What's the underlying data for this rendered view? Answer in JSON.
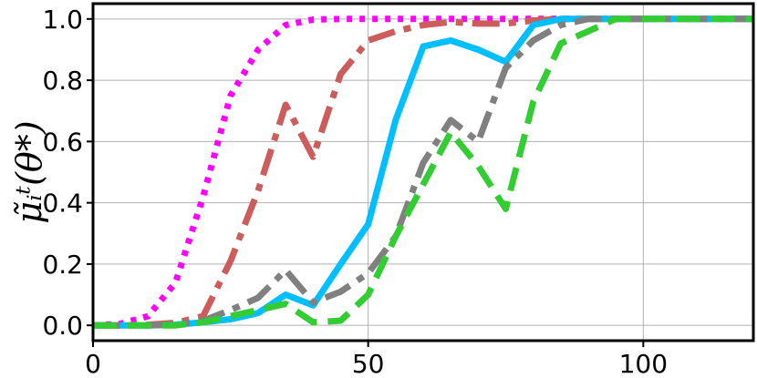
{
  "chart_data": {
    "type": "line",
    "title": "",
    "xlabel": "",
    "ylabel": "μ̃ᵢᵗ(θ*)",
    "xlim": [
      0,
      120
    ],
    "ylim": [
      -0.05,
      1.05
    ],
    "xticks": [
      0,
      50,
      100
    ],
    "xtick_labels": [
      "0",
      "50",
      "100"
    ],
    "yticks": [
      0.0,
      0.2,
      0.4,
      0.6,
      0.8,
      1.0
    ],
    "ytick_labels": [
      "0.0",
      "0.2",
      "0.4",
      "0.6",
      "0.8",
      "1.0"
    ],
    "grid": true,
    "legend": "none",
    "x": [
      0,
      5,
      10,
      15,
      20,
      25,
      30,
      35,
      40,
      45,
      50,
      55,
      60,
      65,
      70,
      75,
      80,
      85,
      90,
      95,
      100,
      105,
      110,
      115,
      120
    ],
    "series": [
      {
        "color": "#ff00ff",
        "style": "dotted",
        "values": [
          0.0,
          0.005,
          0.03,
          0.14,
          0.42,
          0.75,
          0.9,
          0.98,
          0.998,
          1.0,
          1.0,
          1.0,
          1.0,
          1.0,
          1.0,
          1.0,
          1.0,
          1.0,
          1.0,
          1.0,
          1.0,
          1.0,
          1.0,
          1.0,
          1.0
        ]
      },
      {
        "color": "#cd5c5c",
        "style": "dashdot",
        "values": [
          0.0,
          0.0,
          0.002,
          0.008,
          0.03,
          0.21,
          0.44,
          0.72,
          0.55,
          0.82,
          0.93,
          0.96,
          0.98,
          0.99,
          0.985,
          0.985,
          0.995,
          1.0,
          1.0,
          1.0,
          1.0,
          1.0,
          1.0,
          1.0,
          1.0
        ]
      },
      {
        "color": "#00bfff",
        "style": "solid",
        "values": [
          0.0,
          0.0,
          0.0,
          0.002,
          0.01,
          0.02,
          0.04,
          0.1,
          0.065,
          0.2,
          0.33,
          0.67,
          0.91,
          0.93,
          0.9,
          0.86,
          0.98,
          1.0,
          1.0,
          1.0,
          1.0,
          1.0,
          1.0,
          1.0,
          1.0
        ]
      },
      {
        "color": "#808080",
        "style": "dashdot",
        "values": [
          0.0,
          0.0,
          0.0,
          0.003,
          0.015,
          0.05,
          0.09,
          0.18,
          0.075,
          0.11,
          0.17,
          0.29,
          0.53,
          0.67,
          0.6,
          0.84,
          0.93,
          0.98,
          1.0,
          1.0,
          1.0,
          1.0,
          1.0,
          1.0,
          1.0
        ]
      },
      {
        "color": "#32cd32",
        "style": "dashed",
        "values": [
          0.0,
          0.0,
          0.0,
          0.0,
          0.01,
          0.03,
          0.05,
          0.07,
          0.01,
          0.015,
          0.1,
          0.29,
          0.46,
          0.63,
          0.52,
          0.38,
          0.73,
          0.92,
          0.96,
          1.0,
          1.0,
          1.0,
          1.0,
          1.0,
          1.0
        ]
      }
    ]
  }
}
